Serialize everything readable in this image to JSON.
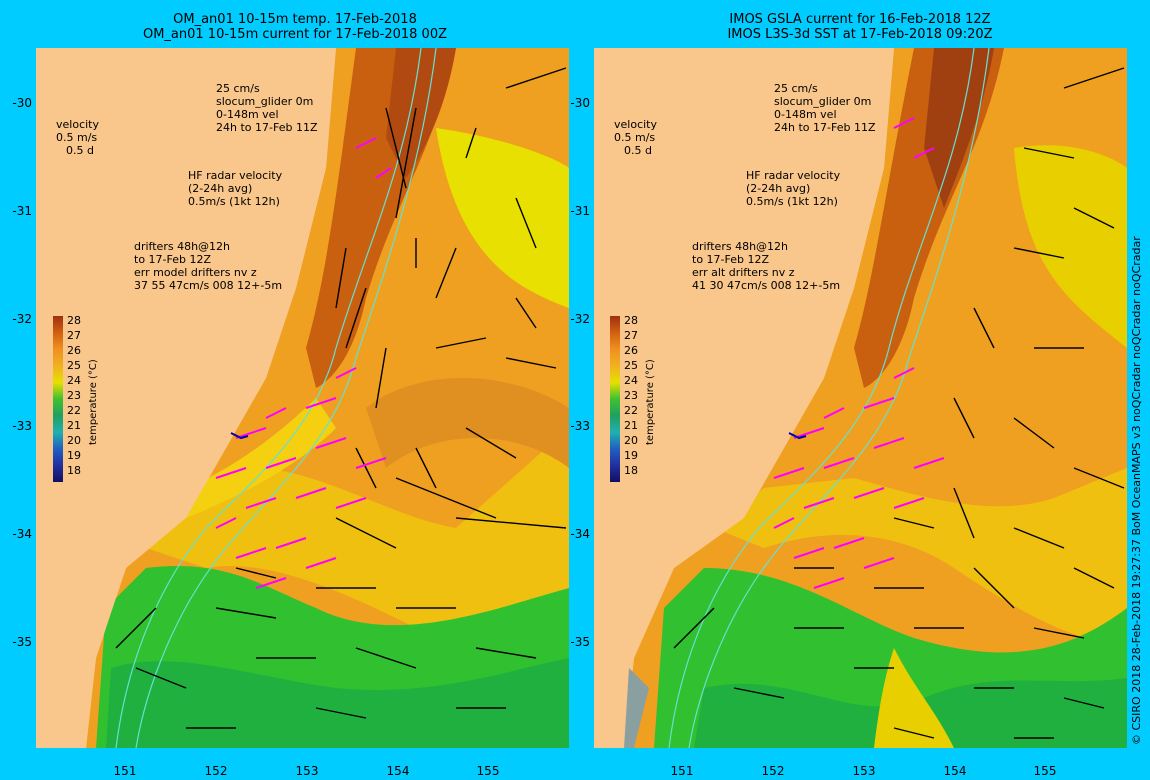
{
  "colors": {
    "land": "#f9c68b",
    "background": "#00ccff",
    "current_arrow": "#000000",
    "hf_radar": "#ff00ff",
    "glider": "#0000aa",
    "isobath": "#66e0d0"
  },
  "left_panel": {
    "title_line1": "OM_an01 10-15m temp. 17-Feb-2018",
    "title_line2": "OM_an01 10-15m current for 17-Feb-2018 00Z",
    "velocity_label": "velocity",
    "velocity_scale": "0.5 m/s",
    "velocity_days": "0.5 d",
    "glider_line1": "25 cm/s",
    "glider_line2": "slocum_glider 0m",
    "glider_line3": "0-148m vel",
    "glider_line4": "24h to 17-Feb 11Z",
    "hf_line1": "HF radar velocity",
    "hf_line2": "(2-24h avg)",
    "hf_line3": "0.5m/s (1kt 12h)",
    "drift_line1": "drifters 48h@12h",
    "drift_line2": "to 17-Feb 12Z",
    "drift_line3": "err model drifters nv z",
    "drift_line4": "37 55 47cm/s 008 12+-5m"
  },
  "right_panel": {
    "title_line1": "IMOS GSLA current for 16-Feb-2018 12Z",
    "title_line2": "IMOS L3S-3d SST at 17-Feb-2018 09:20Z",
    "velocity_label": "velocity",
    "velocity_scale": "0.5 m/s",
    "velocity_days": "0.5 d",
    "glider_line1": "25 cm/s",
    "glider_line2": "slocum_glider 0m",
    "glider_line3": "0-148m vel",
    "glider_line4": "24h to 17-Feb 11Z",
    "hf_line1": "HF radar velocity",
    "hf_line2": "(2-24h avg)",
    "hf_line3": "0.5m/s (1kt 12h)",
    "drift_line1": "drifters 48h@12h",
    "drift_line2": "to 17-Feb 12Z",
    "drift_line3": "err alt drifters nv z",
    "drift_line4": "41 30 47cm/s 008 12+-5m"
  },
  "lat_ticks": [
    "-30",
    "-31",
    "-32",
    "-33",
    "-34",
    "-35"
  ],
  "lon_ticks": [
    "151",
    "152",
    "153",
    "154",
    "155"
  ],
  "colorbar": {
    "title": "temperature (°C)",
    "labels": [
      "28",
      "27",
      "26",
      "25",
      "24",
      "23",
      "22",
      "21",
      "20",
      "19",
      "18"
    ]
  },
  "credit": "© CSIRO 2018   28-Feb-2018 19:27:37 BoM OceanMAPS v3 noQCradar noQCradar noQCradar"
}
